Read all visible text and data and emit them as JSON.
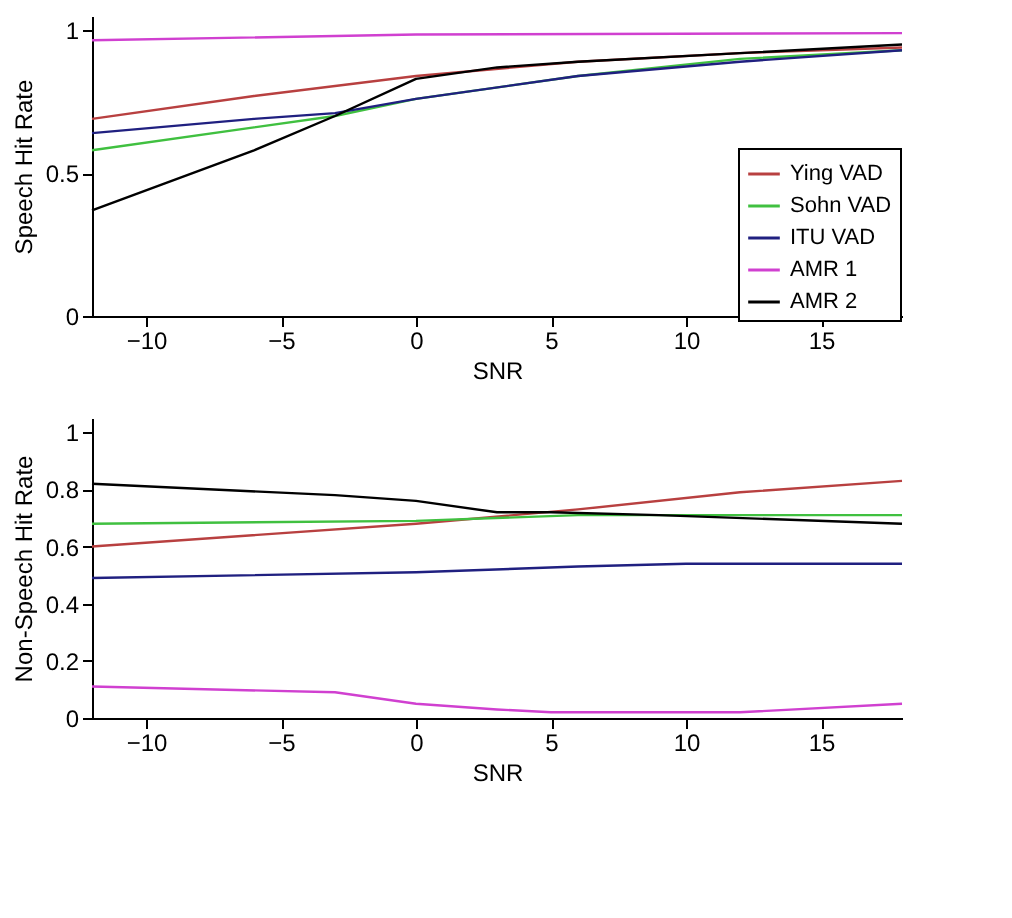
{
  "chart_data": [
    {
      "type": "line",
      "xlabel": "SNR",
      "ylabel": "Speech Hit Rate",
      "xlim": [
        -12,
        18
      ],
      "xticks": [
        -10,
        -5,
        0,
        5,
        10,
        15
      ],
      "ylim": [
        0,
        1.05
      ],
      "yticks": [
        0,
        0.5,
        1
      ],
      "grid": false,
      "legend": "bottom right",
      "marker": "none",
      "line_style": "solid",
      "series": [
        {
          "name": "Ying VAD",
          "color": "#b84040",
          "x": [
            -12,
            -6,
            0,
            6,
            12,
            18
          ],
          "values": [
            0.69,
            0.77,
            0.84,
            0.89,
            0.92,
            0.94
          ]
        },
        {
          "name": "Sohn VAD",
          "color": "#40c040",
          "x": [
            -12,
            -6,
            -3,
            0,
            6,
            12,
            18
          ],
          "values": [
            0.58,
            0.66,
            0.7,
            0.76,
            0.84,
            0.9,
            0.93
          ]
        },
        {
          "name": "ITU VAD",
          "color": "#202080",
          "x": [
            -12,
            -6,
            -3,
            0,
            6,
            12,
            18
          ],
          "values": [
            0.64,
            0.69,
            0.71,
            0.76,
            0.84,
            0.89,
            0.93
          ]
        },
        {
          "name": "AMR 1",
          "color": "#d040d0",
          "x": [
            -12,
            0,
            18
          ],
          "values": [
            0.965,
            0.985,
            0.99
          ]
        },
        {
          "name": "AMR 2",
          "color": "#000000",
          "x": [
            -12,
            -6,
            -3,
            0,
            3,
            6,
            12,
            18
          ],
          "values": [
            0.37,
            0.58,
            0.7,
            0.83,
            0.87,
            0.89,
            0.92,
            0.95
          ]
        }
      ]
    },
    {
      "type": "line",
      "xlabel": "SNR",
      "ylabel": "Non-Speech Hit Rate",
      "xlim": [
        -12,
        18
      ],
      "xticks": [
        -10,
        -5,
        0,
        5,
        10,
        15
      ],
      "ylim": [
        0,
        1.05
      ],
      "yticks": [
        0,
        0.2,
        0.4,
        0.6,
        0.8,
        1
      ],
      "grid": false,
      "marker": "none",
      "line_style": "solid",
      "series": [
        {
          "color": "#b84040",
          "x": [
            -12,
            0,
            6,
            12,
            18
          ],
          "values": [
            0.6,
            0.68,
            0.73,
            0.79,
            0.83
          ]
        },
        {
          "color": "#40c040",
          "x": [
            -12,
            0,
            6,
            18
          ],
          "values": [
            0.68,
            0.69,
            0.71,
            0.71
          ]
        },
        {
          "color": "#202080",
          "x": [
            -12,
            0,
            6,
            10,
            18
          ],
          "values": [
            0.49,
            0.51,
            0.53,
            0.54,
            0.54
          ]
        },
        {
          "color": "#d040d0",
          "x": [
            -12,
            -3,
            0,
            3,
            5,
            12,
            18
          ],
          "values": [
            0.11,
            0.09,
            0.05,
            0.03,
            0.02,
            0.02,
            0.05
          ]
        },
        {
          "color": "#000000",
          "x": [
            -12,
            -3,
            0,
            3,
            5,
            9,
            18
          ],
          "values": [
            0.82,
            0.78,
            0.76,
            0.72,
            0.72,
            0.71,
            0.68
          ]
        }
      ]
    }
  ]
}
